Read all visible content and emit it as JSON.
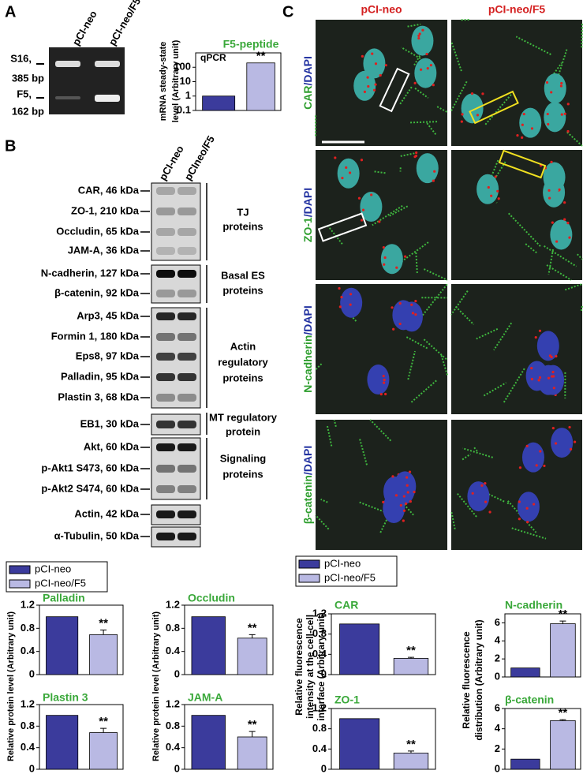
{
  "panel_labels": [
    "A",
    "B",
    "C"
  ],
  "gel": {
    "lanes": [
      "pCI-neo",
      "pCI-neo/F5"
    ],
    "bands": [
      [
        "S16,",
        "385 bp"
      ],
      [
        "F5,",
        "162 bp"
      ]
    ]
  },
  "blot": {
    "lanes": [
      "pCI-neo",
      "pCIneo/F5"
    ],
    "proteins": [
      "CAR, 46 kDa",
      "ZO-1, 210 kDa",
      "Occludin, 65 kDa",
      "JAM-A, 36 kDa",
      "N-cadherin, 127 kDa",
      "β-catenin, 92 kDa",
      "Arp3, 45 kDa",
      "Formin 1, 180 kDa",
      "Eps8, 97 kDa",
      "Palladin, 95 kDa",
      "Plastin 3, 68 kDa",
      "EB1, 30 kDa",
      "Akt, 60 kDa",
      "p-Akt1 S473, 60 kDa",
      "p-Akt2 S474, 60 kDa",
      "Actin, 42 kDa",
      "α-Tubulin, 50 kDa"
    ],
    "groups": [
      [
        "TJ",
        "proteins"
      ],
      [
        "Basal ES",
        "proteins"
      ],
      [
        "Actin",
        "regulatory",
        "proteins"
      ],
      [
        "MT regulatory",
        "protein"
      ],
      [
        "Signaling",
        "proteins"
      ]
    ]
  },
  "microscopy": {
    "columns": [
      "pCI-neo",
      "pCI-neo/F5"
    ],
    "rows": [
      [
        "CAR",
        "/DAPI"
      ],
      [
        "ZO-1",
        "/DAPI"
      ],
      [
        "N-cadherin",
        "/DAPI"
      ],
      [
        "β-catenin",
        "/DAPI"
      ]
    ]
  },
  "legends": [
    {
      "entries": [
        {
          "label": "pCI-neo",
          "color": "#3b3b9c"
        },
        {
          "label": "pCI-neo/F5",
          "color": "#b9b9e3"
        }
      ]
    },
    {
      "entries": [
        {
          "label": "pCI-neo",
          "color": "#3b3b9c"
        },
        {
          "label": "pCI-neo/F5",
          "color": "#b9b9e3"
        }
      ]
    }
  ],
  "chart_data": [
    {
      "type": "bar",
      "title": "F5-peptide",
      "inner_label": "qPCR",
      "ylabel": [
        "mRNA steady-state",
        "level (Arbitrary unit)"
      ],
      "log_scale": true,
      "values": [
        1,
        200
      ],
      "colors": [
        "#3b3b9c",
        "#b9b9e3"
      ],
      "ylim": [
        0.1,
        1000
      ],
      "yticks": [
        0.1,
        1,
        10,
        100
      ],
      "annotation": "**"
    },
    {
      "type": "bar",
      "title": "Palladin",
      "ylabel": [
        "Relative protein level (Arbitrary unit)"
      ],
      "values": [
        1,
        0.69
      ],
      "errors": [
        null,
        0.08
      ],
      "colors": [
        "#3b3b9c",
        "#b9b9e3"
      ],
      "ylim": [
        0,
        1.2
      ],
      "yticks": [
        0,
        0.4,
        0.8,
        1.2
      ],
      "annotation": "**"
    },
    {
      "type": "bar",
      "title": "Occludin",
      "ylabel": [
        "Relative protein level (Arbitrary unit)"
      ],
      "values": [
        1,
        0.63
      ],
      "errors": [
        null,
        0.06
      ],
      "colors": [
        "#3b3b9c",
        "#b9b9e3"
      ],
      "ylim": [
        0,
        1.2
      ],
      "yticks": [
        0,
        0.4,
        0.8,
        1.2
      ],
      "annotation": "**"
    },
    {
      "type": "bar",
      "title": "Plastin 3",
      "values": [
        1,
        0.68
      ],
      "errors": [
        null,
        0.08
      ],
      "colors": [
        "#3b3b9c",
        "#b9b9e3"
      ],
      "ylim": [
        0,
        1.2
      ],
      "yticks": [
        0,
        0.4,
        0.8,
        1.2
      ],
      "annotation": "**"
    },
    {
      "type": "bar",
      "title": "JAM-A",
      "values": [
        1,
        0.6
      ],
      "errors": [
        null,
        0.1
      ],
      "colors": [
        "#3b3b9c",
        "#b9b9e3"
      ],
      "ylim": [
        0,
        1.2
      ],
      "yticks": [
        0,
        0.4,
        0.8,
        1.2
      ],
      "annotation": "**"
    },
    {
      "type": "bar",
      "title": "CAR",
      "ylabel": [
        "Relative fluorescence",
        "intensity at the cell-cell",
        "interface (Arbitrary unit)"
      ],
      "values": [
        1,
        0.32
      ],
      "errors": [
        null,
        0.02
      ],
      "colors": [
        "#3b3b9c",
        "#b9b9e3"
      ],
      "ylim": [
        0,
        1.2
      ],
      "yticks": [
        0,
        0.4,
        0.8,
        1.2
      ],
      "annotation": "**"
    },
    {
      "type": "bar",
      "title": "ZO-1",
      "values": [
        1,
        0.32
      ],
      "errors": [
        null,
        0.04
      ],
      "colors": [
        "#3b3b9c",
        "#b9b9e3"
      ],
      "ylim": [
        0,
        1.2
      ],
      "yticks": [
        0,
        0.4,
        0.8,
        1.2
      ],
      "annotation": "**"
    },
    {
      "type": "bar",
      "title": "N-cadherin",
      "ylabel": [
        "Relative fluorescence",
        "distribution (Arbitrary unit)"
      ],
      "values": [
        1,
        5.9
      ],
      "errors": [
        null,
        0.3
      ],
      "colors": [
        "#3b3b9c",
        "#b9b9e3"
      ],
      "ylim": [
        0,
        7
      ],
      "yticks": [
        0,
        2,
        4,
        6
      ],
      "annotation": "**"
    },
    {
      "type": "bar",
      "title": "β-catenin",
      "values": [
        1,
        4.8
      ],
      "errors": [
        null,
        0.1
      ],
      "colors": [
        "#3b3b9c",
        "#b9b9e3"
      ],
      "ylim": [
        0,
        6
      ],
      "yticks": [
        0,
        2,
        4,
        6
      ],
      "annotation": "**"
    }
  ]
}
